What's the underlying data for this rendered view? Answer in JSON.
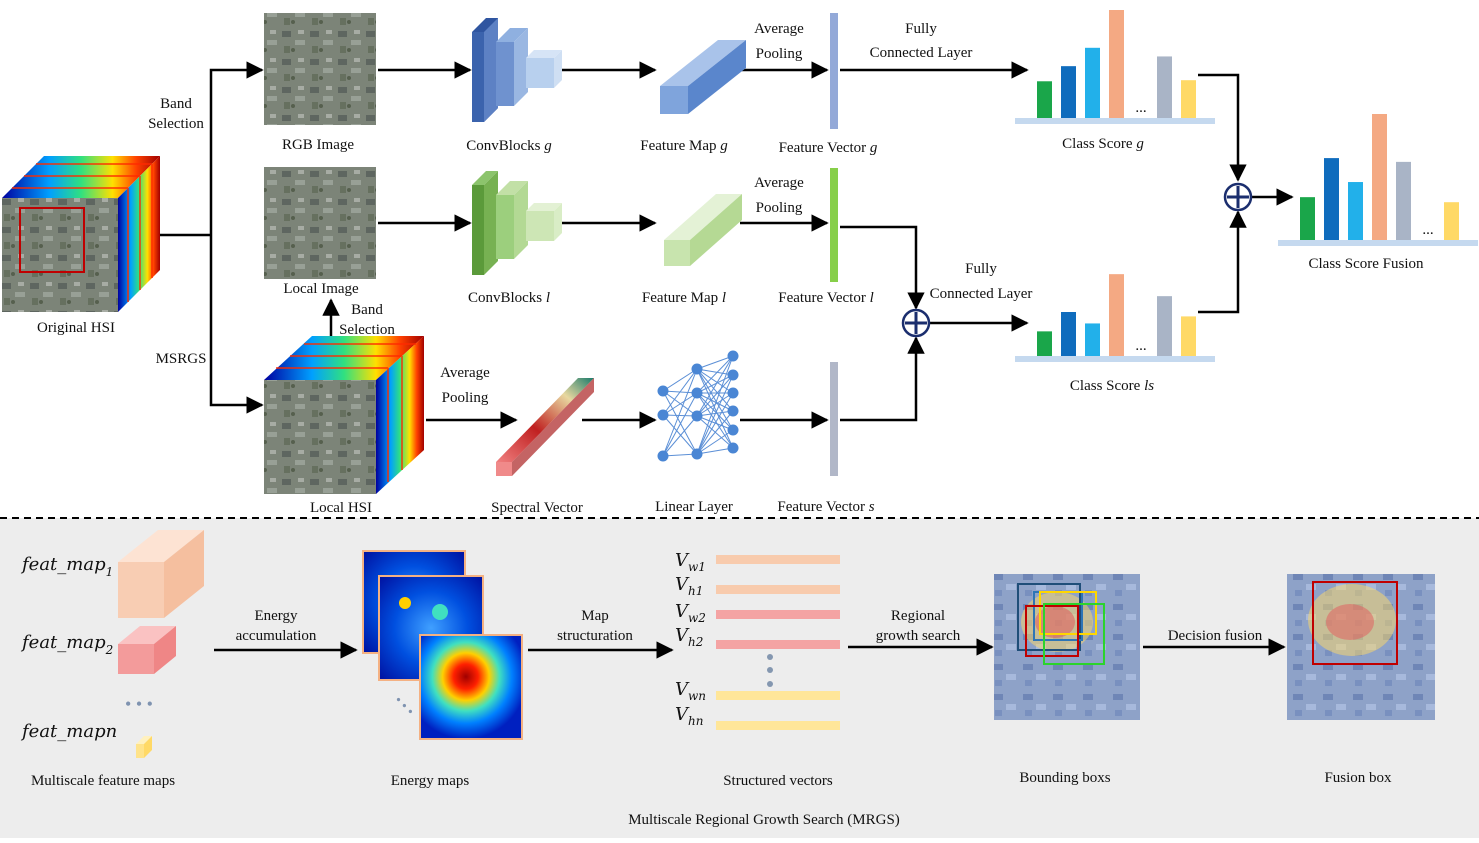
{
  "top": {
    "original_hsi": "Original HSI",
    "band_selection_top": [
      "Band",
      "Selection"
    ],
    "msrgs": "MSRGS",
    "rgb_image": "RGB Image",
    "local_image": "Local Image",
    "band_selection_mid": [
      "Band",
      "Selection"
    ],
    "local_hsi": "Local HSI",
    "conv_g": "ConvBlocks",
    "conv_g_var": "g",
    "conv_l": "ConvBlocks",
    "conv_l_var": "l",
    "fmap_g": "Feature Map",
    "fmap_g_var": "g",
    "fmap_l": "Feature Map",
    "fmap_l_var": "l",
    "avg_pool_1": [
      "Average",
      "Pooling"
    ],
    "avg_pool_2": [
      "Average",
      "Pooling"
    ],
    "avg_pool_3": [
      "Average",
      "Pooling"
    ],
    "fvec_g": "Feature Vector",
    "fvec_g_var": "g",
    "fvec_l": "Feature Vector",
    "fvec_l_var": "l",
    "fvec_s": "Feature Vector",
    "fvec_s_var": "s",
    "spectral_vector": "Spectral Vector",
    "linear_layer": "Linear Layer",
    "fc_1": [
      "Fully",
      "Connected Layer"
    ],
    "fc_2": [
      "Fully",
      "Connected Layer"
    ],
    "class_score_g": "Class Score",
    "class_score_g_var": "g",
    "class_score_ls": "Class Score",
    "class_score_ls_var": "ls",
    "class_score_fusion": "Class Score Fusion",
    "ellipsis": "..."
  },
  "bottom": {
    "feat_map_1": "feat_map",
    "feat_map_1_sub": "1",
    "feat_map_2": "feat_map",
    "feat_map_2_sub": "2",
    "feat_map_n": "feat_mapn",
    "dots": "• • •",
    "multiscale_feature_maps": "Multiscale feature maps",
    "energy_accumulation": [
      "Energy",
      "accumulation"
    ],
    "energy_maps": "Energy maps",
    "map_structuration": [
      "Map",
      "structuration"
    ],
    "v_w1": "V",
    "v_w1_sub": "w1",
    "v_h1": "V",
    "v_h1_sub": "h1",
    "v_w2": "V",
    "v_w2_sub": "w2",
    "v_h2": "V",
    "v_h2_sub": "h2",
    "v_wn": "V",
    "v_wn_sub": "wn",
    "v_hn": "V",
    "v_hn_sub": "hn",
    "structured_vectors": "Structured vectors",
    "regional_growth_search": [
      "Regional",
      "growth search"
    ],
    "bounding_boxes": "Bounding boxs",
    "decision_fusion": "Decision fusion",
    "fusion_box": "Fusion box",
    "caption": "Multiscale Regional Growth Search (MRGS)"
  },
  "colors": {
    "bar_green": "#1aa64a",
    "bar_blue": "#0f6cbd",
    "bar_cyan": "#22b0ea",
    "bar_orange": "#f4a983",
    "bar_gray": "#a9b4c6",
    "bar_yellow": "#ffd966",
    "conv_blue": "#4f74b8",
    "conv_green": "#6fa84a",
    "bottom_bg": "#ededed"
  },
  "score_g_bars": [
    0.34,
    0.48,
    0.65,
    1.0,
    0.57,
    0.35
  ],
  "score_ls_bars": [
    0.28,
    0.5,
    0.37,
    0.93,
    0.68,
    0.45
  ],
  "score_fusion_bars": [
    0.34,
    0.65,
    0.46,
    1.0,
    0.62,
    0.3
  ]
}
